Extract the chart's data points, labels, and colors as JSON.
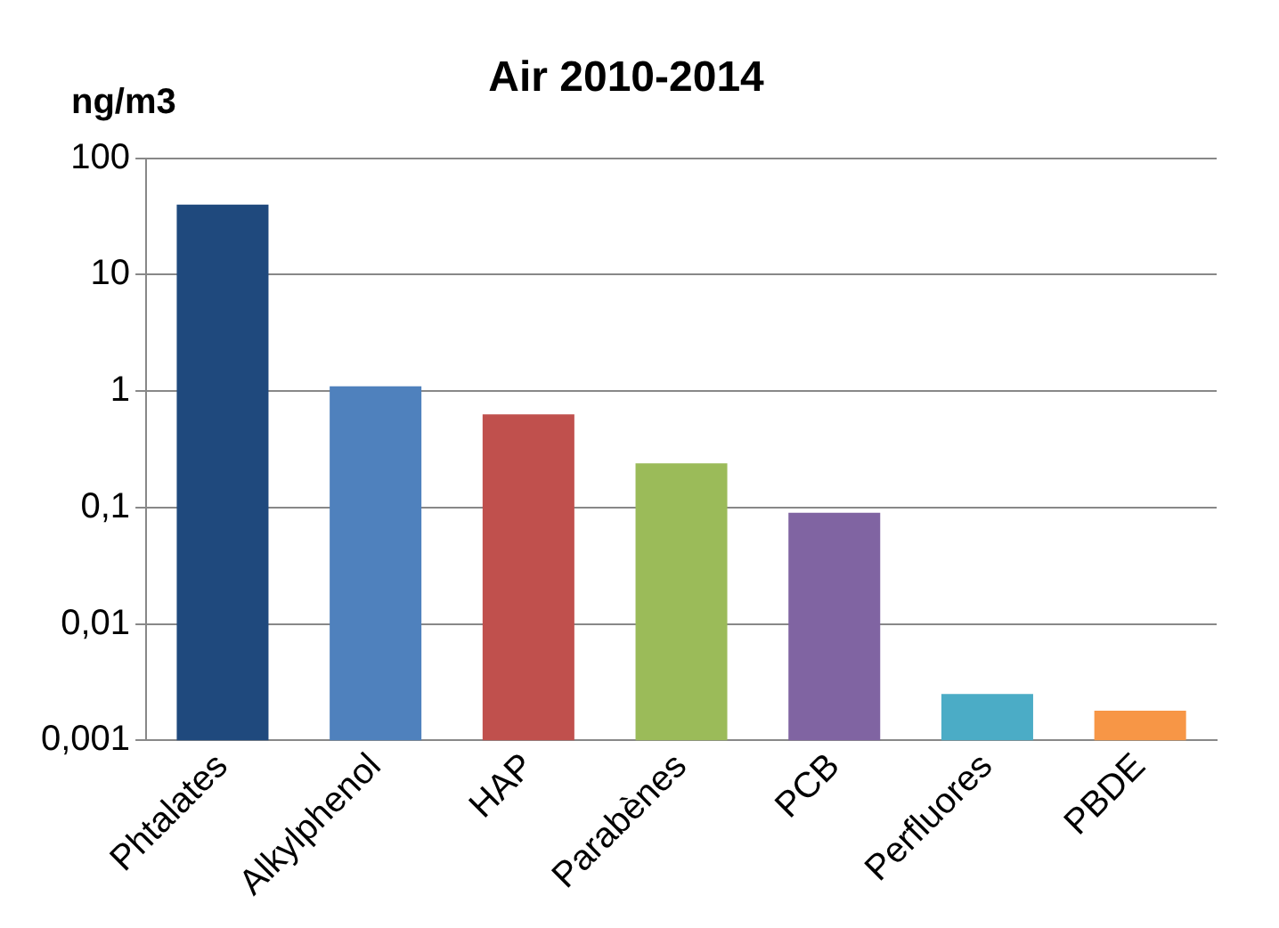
{
  "chart_data": {
    "type": "bar",
    "title": "Air 2010-2014",
    "ylabel": "ng/m3",
    "categories": [
      "Phtalates",
      "Alkylphenol",
      "HAP",
      "Parabènes",
      "PCB",
      "Perfluores",
      "PBDE"
    ],
    "values": [
      40,
      1.1,
      0.63,
      0.24,
      0.09,
      0.0025,
      0.0018
    ],
    "colors": [
      "#1f497d",
      "#4f81bd",
      "#c0504d",
      "#9bbb59",
      "#8064a2",
      "#4bacc6",
      "#f79646"
    ],
    "log": "y",
    "ylim": [
      0.001,
      100
    ],
    "yticks": [
      {
        "value": 0.001,
        "label": "0,001"
      },
      {
        "value": 0.01,
        "label": "0,01"
      },
      {
        "value": 0.1,
        "label": "0,1"
      },
      1,
      10,
      100
    ],
    "grid": "y"
  }
}
